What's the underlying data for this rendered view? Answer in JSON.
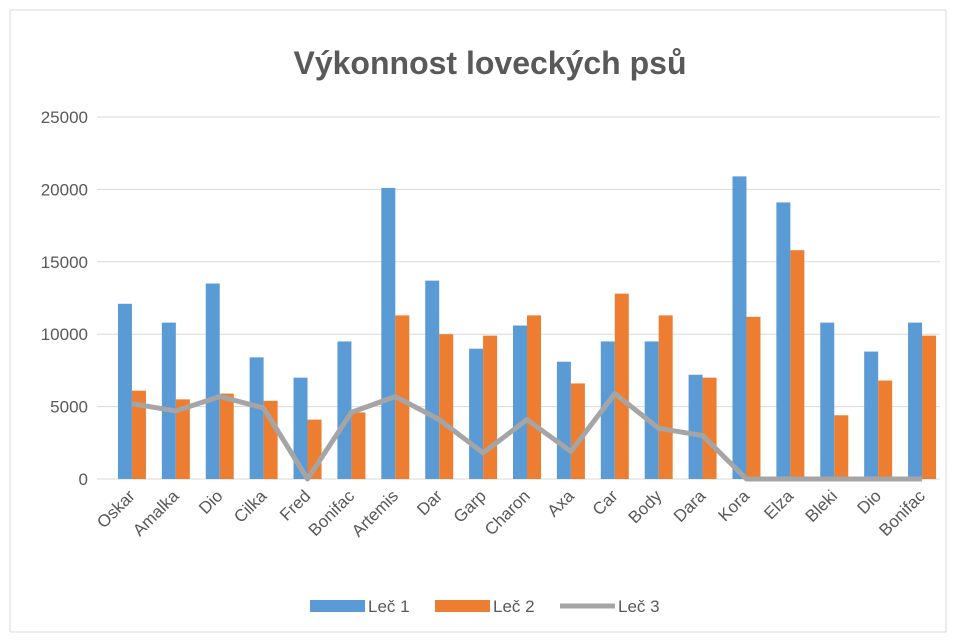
{
  "chart_data": {
    "type": "bar_line",
    "title": "Výkonnost loveckých psů",
    "categories": [
      "Oskar",
      "Amalka",
      "Dio",
      "Cilka",
      "Fred",
      "Bonifac",
      "Artemis",
      "Dar",
      "Garp",
      "Charon",
      "Axa",
      "Car",
      "Body",
      "Dara",
      "Kora",
      "Elza",
      "Bleki",
      "Dio",
      "Bonifac"
    ],
    "series": [
      {
        "name": "Leč 1",
        "color": "#5b9bd5",
        "kind": "bar",
        "values": [
          12100,
          10800,
          13500,
          8400,
          7000,
          9500,
          20100,
          13700,
          9000,
          10600,
          8100,
          9500,
          9500,
          7200,
          20900,
          19100,
          10800,
          8800,
          10800
        ]
      },
      {
        "name": "Leč 2",
        "color": "#ed7d31",
        "kind": "bar",
        "values": [
          6100,
          5500,
          5900,
          5400,
          4100,
          4600,
          11300,
          10000,
          9900,
          11300,
          6600,
          12800,
          11300,
          7000,
          11200,
          15800,
          4400,
          6800,
          9900
        ]
      },
      {
        "name": "Leč 3",
        "color": "#a5a5a5",
        "kind": "line",
        "values": [
          5200,
          4700,
          5700,
          4900,
          0,
          4600,
          5700,
          4100,
          1800,
          4100,
          1900,
          5900,
          3500,
          3000,
          0,
          0,
          0,
          0,
          0
        ]
      }
    ],
    "ylim": [
      0,
      25000
    ],
    "yticks": [
      0,
      5000,
      10000,
      15000,
      20000,
      25000
    ],
    "grid": true,
    "legend": "bottom"
  }
}
